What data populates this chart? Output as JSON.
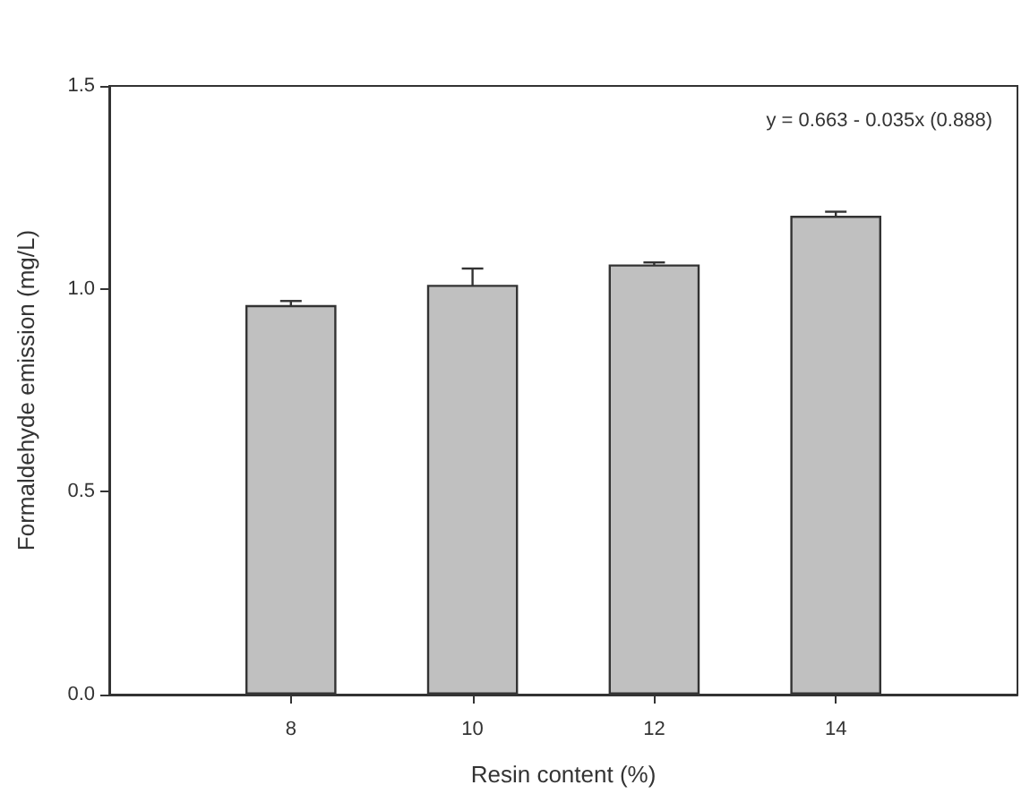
{
  "chart_data": {
    "type": "bar",
    "xlabel": "Resin content (%)",
    "ylabel": "Formaldehyde emission (mg/L)",
    "x": [
      8,
      10,
      12,
      14
    ],
    "xlim": [
      6,
      16
    ],
    "xticks": [
      8,
      10,
      12,
      14
    ],
    "values": [
      0.96,
      1.01,
      1.06,
      1.18
    ],
    "errors": [
      0.01,
      0.04,
      0.005,
      0.01
    ],
    "color": "#c0c0c0",
    "ylim": [
      0,
      1.5
    ],
    "yticks": [
      {
        "value": 0,
        "label": "0.0"
      },
      {
        "value": 0.5,
        "label": "0.5"
      },
      {
        "value": 1,
        "label": "1.0"
      },
      {
        "value": 1.5,
        "label": "1.5"
      }
    ],
    "annotations": [
      "y = 0.663 - 0.035x (0.888)"
    ],
    "grid": false
  }
}
